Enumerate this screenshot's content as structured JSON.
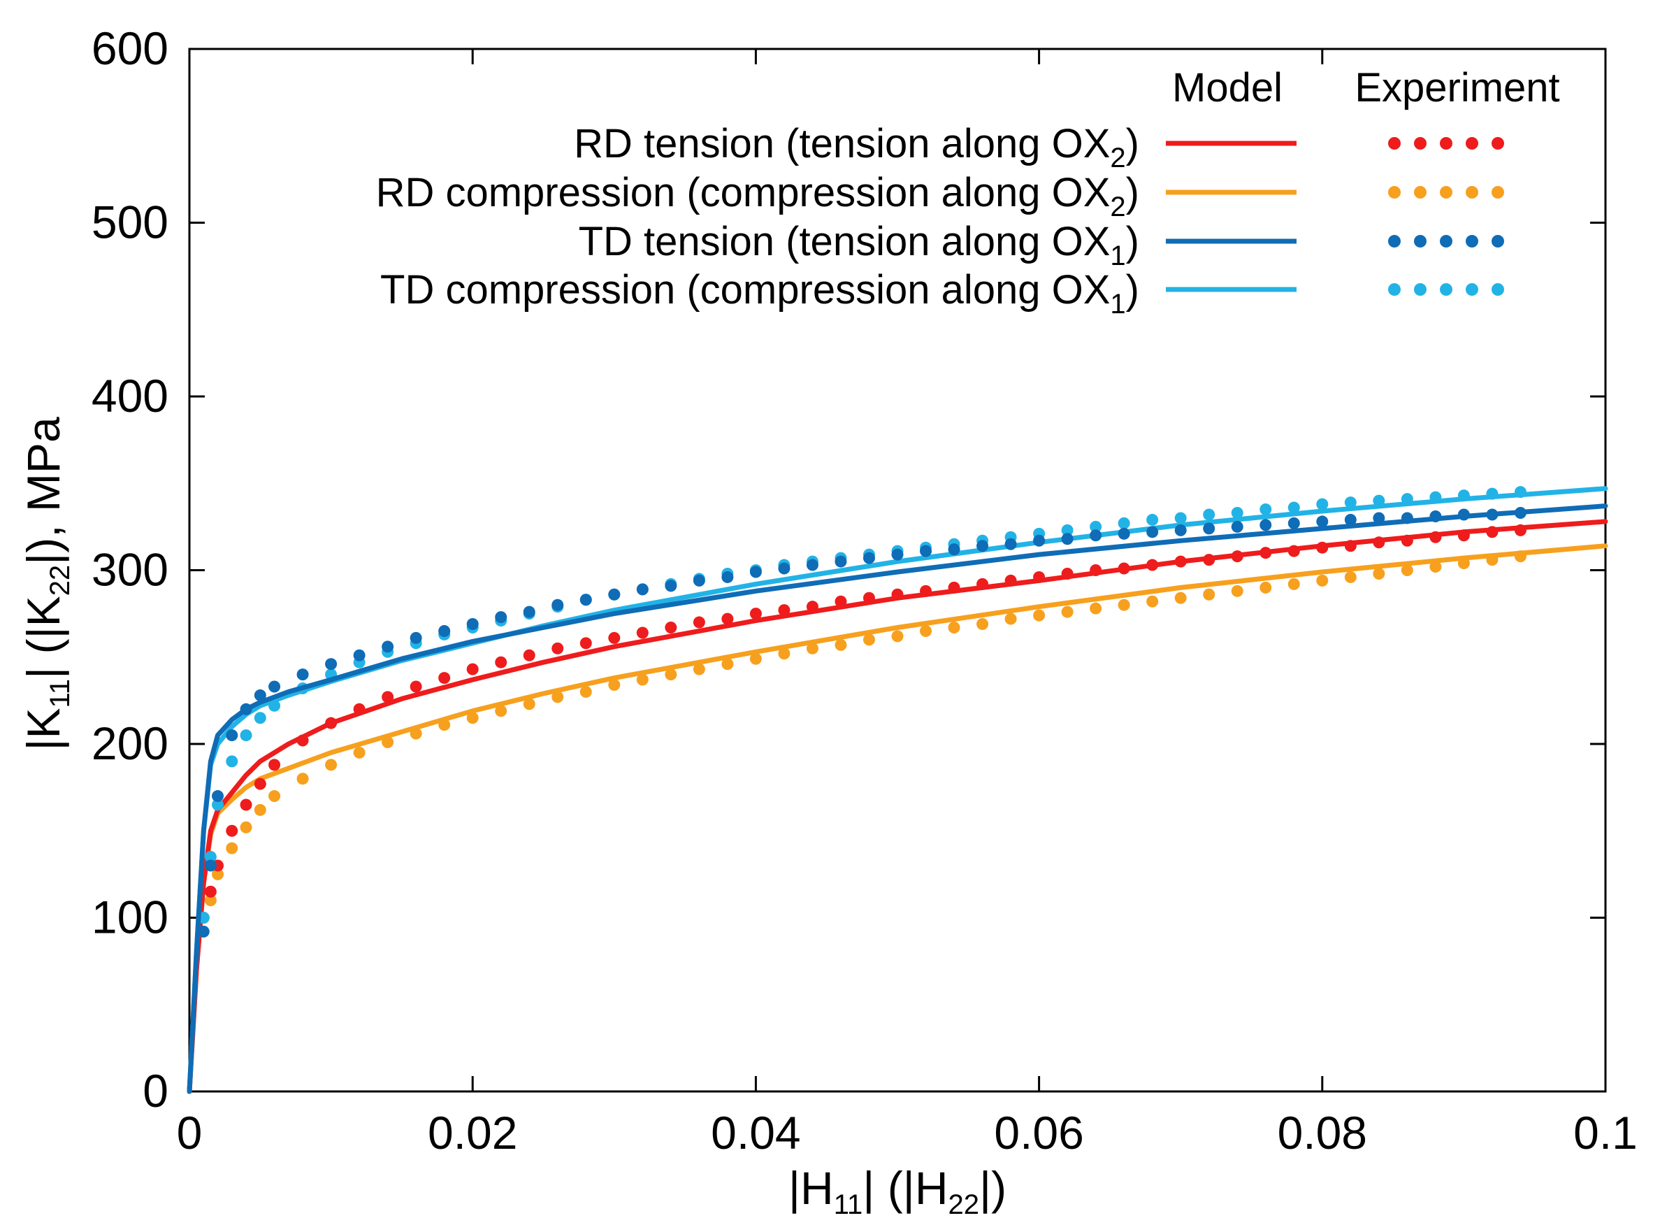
{
  "chart_data": {
    "type": "line",
    "title": "",
    "xlabel": {
      "pre": "|H",
      "sub1": "11",
      "mid": "| (|H",
      "sub2": "22",
      "post": "|)"
    },
    "ylabel": {
      "pre": "|K",
      "sub1": "11",
      "mid": "| (|K",
      "sub2": "22",
      "post": "|), MPa"
    },
    "xlim": [
      0,
      0.1
    ],
    "ylim": [
      0,
      600
    ],
    "xticks": [
      0,
      0.02,
      0.04,
      0.06,
      0.08,
      0.1
    ],
    "xtick_labels": [
      "0",
      "0.02",
      "0.04",
      "0.06",
      "0.08",
      "0.1"
    ],
    "yticks": [
      0,
      100,
      200,
      300,
      400,
      500,
      600
    ],
    "ytick_labels": [
      "0",
      "100",
      "200",
      "300",
      "400",
      "500",
      "600"
    ],
    "grid": false,
    "legend": {
      "position": "top-right",
      "model_header": "Model",
      "experiment_header": "Experiment"
    },
    "series": [
      {
        "name": "RD tension",
        "label_pre": "RD tension (tension along OX",
        "label_sub": "2",
        "label_post": ")",
        "color": "#ee1c1c",
        "model": {
          "x": [
            0,
            0.0005,
            0.001,
            0.0015,
            0.002,
            0.003,
            0.004,
            0.005,
            0.007,
            0.01,
            0.015,
            0.02,
            0.025,
            0.03,
            0.04,
            0.05,
            0.06,
            0.07,
            0.08,
            0.09,
            0.1
          ],
          "y": [
            0,
            70,
            120,
            150,
            162,
            172,
            182,
            190,
            200,
            212,
            226,
            237,
            247,
            256,
            271,
            284,
            294,
            305,
            314,
            322,
            328
          ]
        },
        "experiment": {
          "x": [
            0.001,
            0.0015,
            0.002,
            0.003,
            0.004,
            0.005,
            0.006,
            0.008,
            0.01,
            0.012,
            0.014,
            0.016,
            0.018,
            0.02,
            0.022,
            0.024,
            0.026,
            0.028,
            0.03,
            0.032,
            0.034,
            0.036,
            0.038,
            0.04,
            0.042,
            0.044,
            0.046,
            0.048,
            0.05,
            0.052,
            0.054,
            0.056,
            0.058,
            0.06,
            0.062,
            0.064,
            0.066,
            0.068,
            0.07,
            0.072,
            0.074,
            0.076,
            0.078,
            0.08,
            0.082,
            0.084,
            0.086,
            0.088,
            0.09,
            0.092,
            0.094
          ],
          "y": [
            100,
            115,
            130,
            150,
            165,
            177,
            188,
            202,
            212,
            220,
            227,
            233,
            238,
            243,
            247,
            251,
            255,
            258,
            261,
            264,
            267,
            270,
            272,
            275,
            277,
            279,
            282,
            284,
            286,
            288,
            290,
            292,
            294,
            296,
            298,
            300,
            301,
            303,
            305,
            306,
            308,
            310,
            311,
            313,
            314,
            316,
            317,
            319,
            320,
            322,
            323
          ]
        }
      },
      {
        "name": "RD compression",
        "label_pre": "RD compression (compression along OX",
        "label_sub": "2",
        "label_post": ")",
        "color": "#f7a01e",
        "model": {
          "x": [
            0,
            0.0005,
            0.001,
            0.0015,
            0.002,
            0.003,
            0.004,
            0.005,
            0.007,
            0.01,
            0.015,
            0.02,
            0.025,
            0.03,
            0.04,
            0.05,
            0.06,
            0.07,
            0.08,
            0.09,
            0.1
          ],
          "y": [
            0,
            70,
            120,
            148,
            160,
            168,
            175,
            180,
            186,
            195,
            207,
            219,
            229,
            238,
            253,
            267,
            279,
            290,
            299,
            307,
            314
          ]
        },
        "experiment": {
          "x": [
            0.001,
            0.0015,
            0.002,
            0.003,
            0.004,
            0.005,
            0.006,
            0.008,
            0.01,
            0.012,
            0.014,
            0.016,
            0.018,
            0.02,
            0.022,
            0.024,
            0.026,
            0.028,
            0.03,
            0.032,
            0.034,
            0.036,
            0.038,
            0.04,
            0.042,
            0.044,
            0.046,
            0.048,
            0.05,
            0.052,
            0.054,
            0.056,
            0.058,
            0.06,
            0.062,
            0.064,
            0.066,
            0.068,
            0.07,
            0.072,
            0.074,
            0.076,
            0.078,
            0.08,
            0.082,
            0.084,
            0.086,
            0.088,
            0.09,
            0.092,
            0.094
          ],
          "y": [
            100,
            110,
            125,
            140,
            152,
            162,
            170,
            180,
            188,
            195,
            201,
            206,
            211,
            215,
            219,
            223,
            227,
            230,
            234,
            237,
            240,
            243,
            246,
            249,
            252,
            255,
            257,
            260,
            262,
            265,
            267,
            269,
            272,
            274,
            276,
            278,
            280,
            282,
            284,
            286,
            288,
            290,
            292,
            294,
            296,
            298,
            300,
            302,
            304,
            306,
            308
          ]
        }
      },
      {
        "name": "TD tension",
        "label_pre": "TD tension (tension along OX",
        "label_sub": "1",
        "label_post": ")",
        "color": "#0f6cb6",
        "model": {
          "x": [
            0,
            0.0005,
            0.001,
            0.0015,
            0.002,
            0.003,
            0.004,
            0.005,
            0.007,
            0.01,
            0.015,
            0.02,
            0.025,
            0.03,
            0.04,
            0.05,
            0.06,
            0.07,
            0.08,
            0.09,
            0.1
          ],
          "y": [
            0,
            80,
            150,
            190,
            205,
            214,
            220,
            224,
            230,
            237,
            249,
            259,
            267,
            275,
            288,
            299,
            309,
            317,
            324,
            331,
            337
          ]
        },
        "experiment": {
          "x": [
            0.001,
            0.0015,
            0.002,
            0.003,
            0.004,
            0.005,
            0.006,
            0.008,
            0.01,
            0.012,
            0.014,
            0.016,
            0.018,
            0.02,
            0.022,
            0.024,
            0.026,
            0.028,
            0.03,
            0.032,
            0.034,
            0.036,
            0.038,
            0.04,
            0.042,
            0.044,
            0.046,
            0.048,
            0.05,
            0.052,
            0.054,
            0.056,
            0.058,
            0.06,
            0.062,
            0.064,
            0.066,
            0.068,
            0.07,
            0.072,
            0.074,
            0.076,
            0.078,
            0.08,
            0.082,
            0.084,
            0.086,
            0.088,
            0.09,
            0.092,
            0.094
          ],
          "y": [
            92,
            130,
            170,
            205,
            220,
            228,
            233,
            240,
            246,
            251,
            256,
            261,
            265,
            269,
            273,
            276,
            280,
            283,
            286,
            289,
            291,
            294,
            296,
            299,
            301,
            303,
            305,
            307,
            309,
            311,
            312,
            314,
            315,
            317,
            318,
            320,
            321,
            322,
            323,
            324,
            325,
            326,
            327,
            328,
            329,
            330,
            330,
            331,
            332,
            332,
            333
          ]
        }
      },
      {
        "name": "TD compression",
        "label_pre": "TD compression (compression along OX",
        "label_sub": "1",
        "label_post": ")",
        "color": "#22b3e6",
        "model": {
          "x": [
            0,
            0.0005,
            0.001,
            0.0015,
            0.002,
            0.003,
            0.004,
            0.005,
            0.007,
            0.01,
            0.015,
            0.02,
            0.025,
            0.03,
            0.04,
            0.05,
            0.06,
            0.07,
            0.08,
            0.09,
            0.1
          ],
          "y": [
            0,
            80,
            150,
            188,
            200,
            210,
            217,
            222,
            228,
            236,
            248,
            258,
            268,
            277,
            292,
            305,
            316,
            326,
            334,
            341,
            347
          ]
        },
        "experiment": {
          "x": [
            0.001,
            0.0015,
            0.002,
            0.003,
            0.004,
            0.005,
            0.006,
            0.008,
            0.01,
            0.012,
            0.014,
            0.016,
            0.018,
            0.02,
            0.022,
            0.024,
            0.026,
            0.028,
            0.03,
            0.032,
            0.034,
            0.036,
            0.038,
            0.04,
            0.042,
            0.044,
            0.046,
            0.048,
            0.05,
            0.052,
            0.054,
            0.056,
            0.058,
            0.06,
            0.062,
            0.064,
            0.066,
            0.068,
            0.07,
            0.072,
            0.074,
            0.076,
            0.078,
            0.08,
            0.082,
            0.084,
            0.086,
            0.088,
            0.09,
            0.092,
            0.094
          ],
          "y": [
            100,
            135,
            165,
            190,
            205,
            215,
            222,
            232,
            240,
            247,
            253,
            258,
            263,
            267,
            271,
            275,
            279,
            283,
            286,
            289,
            292,
            295,
            298,
            300,
            303,
            305,
            307,
            309,
            311,
            313,
            315,
            317,
            319,
            321,
            323,
            325,
            327,
            329,
            330,
            332,
            333,
            335,
            336,
            338,
            339,
            340,
            341,
            342,
            343,
            344,
            345
          ]
        }
      }
    ]
  }
}
